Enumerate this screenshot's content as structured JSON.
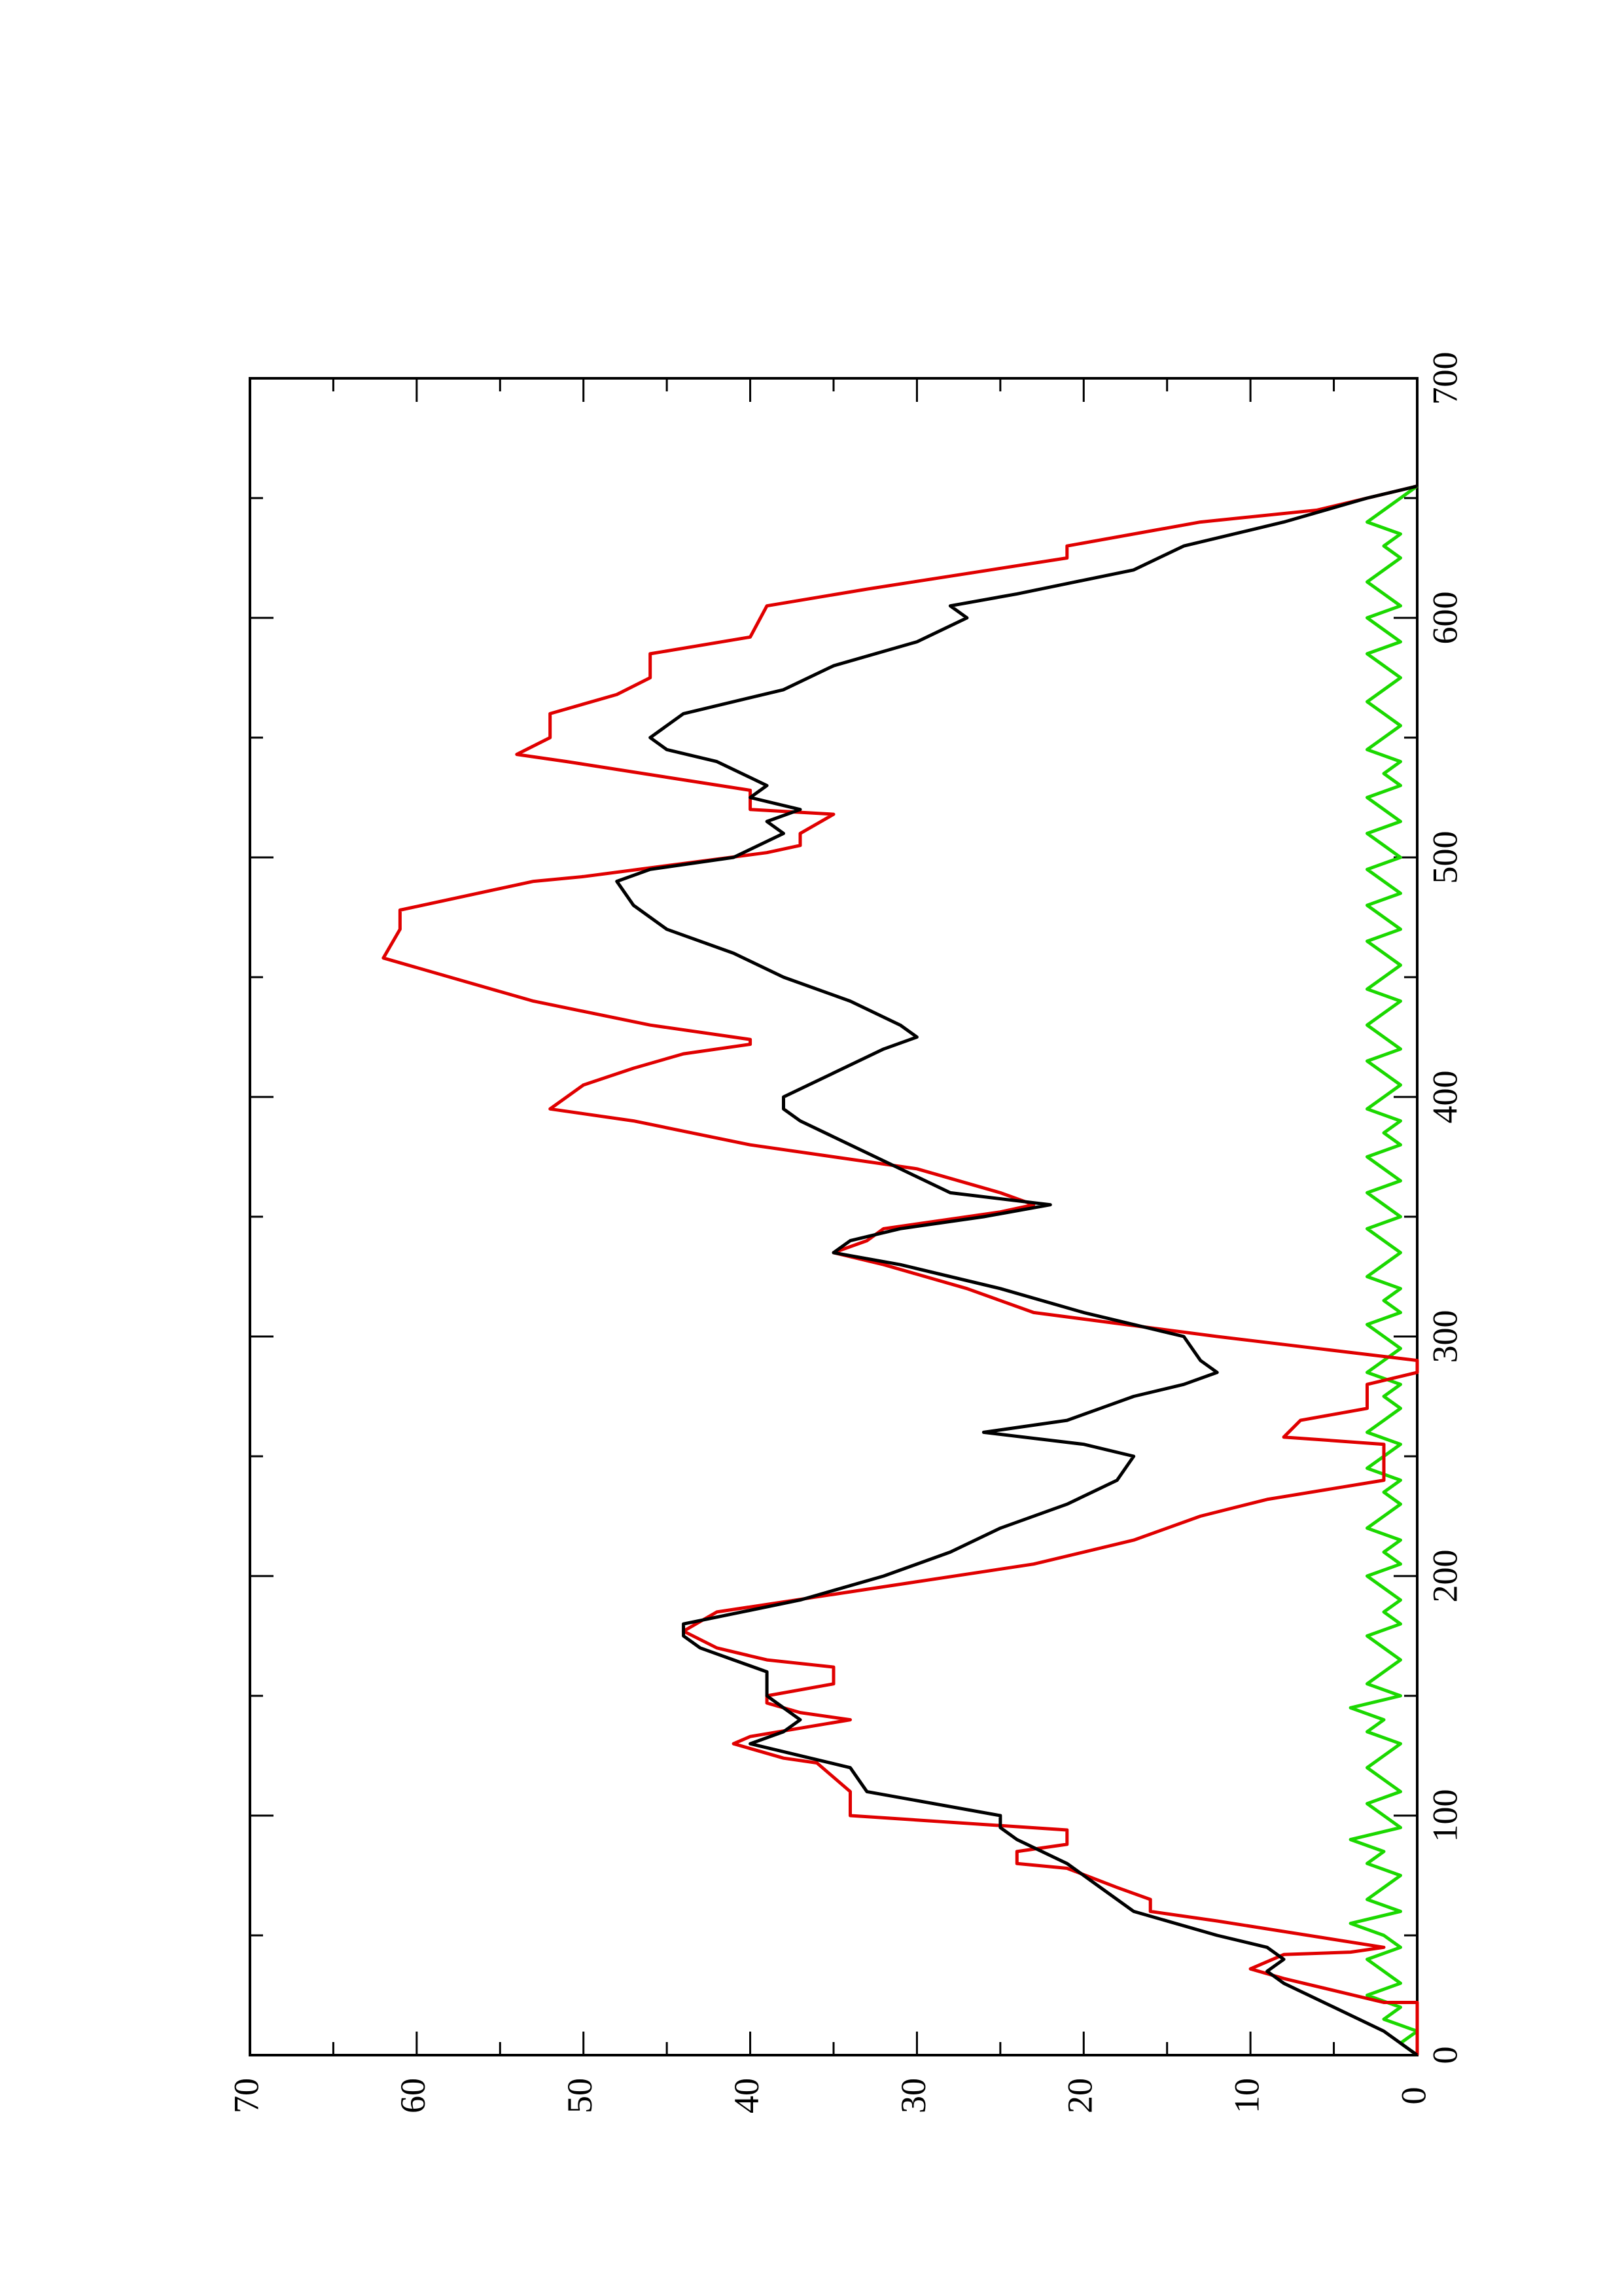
{
  "chart_data": {
    "type": "line",
    "orientation": "rotated-90-ccw",
    "x_axis": {
      "range": [
        0,
        700
      ],
      "ticks": [
        0,
        100,
        200,
        300,
        400,
        500,
        600,
        700
      ]
    },
    "y_axis": {
      "range": [
        0,
        70
      ],
      "ticks": [
        0,
        10,
        20,
        30,
        40,
        50,
        60,
        70
      ]
    },
    "grid": false,
    "legend": "none",
    "series": [
      {
        "color": "#000000",
        "style": "line",
        "x": [
          0,
          10,
          20,
          30,
          35,
          40,
          45,
          50,
          60,
          70,
          80,
          90,
          95,
          100,
          110,
          120,
          130,
          135,
          140,
          145,
          150,
          160,
          165,
          170,
          175,
          180,
          190,
          200,
          210,
          220,
          230,
          240,
          250,
          255,
          260,
          265,
          270,
          275,
          280,
          285,
          290,
          300,
          310,
          320,
          330,
          335,
          340,
          345,
          350,
          355,
          360,
          370,
          380,
          390,
          395,
          400,
          410,
          420,
          425,
          430,
          440,
          450,
          460,
          470,
          480,
          490,
          495,
          500,
          510,
          515,
          520,
          525,
          530,
          540,
          545,
          550,
          560,
          570,
          580,
          590,
          600,
          605,
          610,
          620,
          630,
          640,
          650,
          655
        ],
        "y": [
          0,
          2,
          5,
          8,
          9,
          8,
          9,
          12,
          17,
          19,
          21,
          24,
          25,
          25,
          33,
          34,
          40,
          38,
          37,
          38,
          39,
          39,
          41,
          43,
          44,
          44,
          37,
          32,
          28,
          25,
          21,
          18,
          17,
          20,
          26,
          21,
          19,
          17,
          14,
          12,
          13,
          14,
          20,
          25,
          31,
          35,
          34,
          31,
          26,
          22,
          28,
          31,
          34,
          37,
          38,
          38,
          35,
          32,
          30,
          31,
          34,
          38,
          41,
          45,
          47,
          48,
          46,
          41,
          38,
          39,
          37,
          40,
          39,
          42,
          45,
          46,
          44,
          38,
          35,
          30,
          27,
          28,
          24,
          17,
          14,
          8,
          3,
          0
        ]
      },
      {
        "color": "#e00000",
        "style": "line",
        "x": [
          0,
          22,
          22,
          32,
          36,
          42,
          43,
          45,
          56,
          60,
          65,
          70,
          78,
          80,
          85,
          88,
          94,
          100,
          110,
          122,
          124,
          130,
          133,
          140,
          143,
          147,
          150,
          155,
          162,
          165,
          170,
          177,
          181,
          185,
          205,
          215,
          225,
          232,
          240,
          255,
          258,
          265,
          270,
          280,
          285,
          290,
          295,
          300,
          310,
          320,
          330,
          335,
          340,
          345,
          352,
          355,
          360,
          370,
          380,
          390,
          395,
          405,
          412,
          418,
          422,
          424,
          430,
          440,
          450,
          458,
          470,
          478,
          490,
          492,
          502,
          505,
          510,
          518,
          520,
          528,
          540,
          543,
          550,
          560,
          568,
          575,
          585,
          592,
          605,
          612,
          625,
          630,
          640,
          645,
          655
        ],
        "y": [
          0,
          0,
          2,
          8,
          10,
          8,
          4,
          2,
          12,
          16,
          16,
          18,
          21,
          24,
          24,
          21,
          21,
          34,
          34,
          36,
          38,
          41,
          40,
          34,
          37,
          39,
          39,
          35,
          35,
          39,
          42,
          44,
          43,
          42,
          23,
          17,
          13,
          9,
          2,
          2,
          8,
          7,
          3,
          3,
          0,
          0,
          6,
          12,
          23,
          27,
          32,
          35,
          33,
          32,
          25,
          23,
          25,
          30,
          40,
          47,
          52,
          50,
          47,
          44,
          40,
          40,
          46,
          53,
          58,
          62,
          61,
          61,
          53,
          50,
          39,
          37,
          37,
          35,
          40,
          40,
          51,
          54,
          52,
          52,
          48,
          46,
          46,
          40,
          39,
          33,
          21,
          21,
          13,
          6,
          0
        ]
      },
      {
        "color": "#1bd800",
        "style": "line",
        "x": [
          0,
          5,
          10,
          15,
          20,
          25,
          30,
          35,
          40,
          45,
          50,
          55,
          60,
          65,
          70,
          75,
          80,
          85,
          90,
          95,
          100,
          105,
          110,
          115,
          120,
          125,
          130,
          135,
          140,
          145,
          150,
          155,
          160,
          165,
          170,
          175,
          180,
          185,
          190,
          195,
          200,
          205,
          210,
          215,
          220,
          225,
          230,
          235,
          240,
          245,
          250,
          255,
          260,
          265,
          270,
          275,
          280,
          285,
          290,
          295,
          300,
          305,
          310,
          315,
          320,
          325,
          330,
          335,
          340,
          345,
          350,
          355,
          360,
          365,
          370,
          375,
          380,
          385,
          390,
          395,
          400,
          405,
          410,
          415,
          420,
          425,
          430,
          435,
          440,
          445,
          450,
          455,
          460,
          465,
          470,
          475,
          480,
          485,
          490,
          495,
          500,
          505,
          510,
          515,
          520,
          525,
          530,
          535,
          540,
          545,
          550,
          555,
          560,
          565,
          570,
          575,
          580,
          585,
          590,
          595,
          600,
          605,
          610,
          615,
          620,
          625,
          630,
          635,
          640,
          645,
          650,
          655
        ],
        "y": [
          0,
          1,
          0,
          2,
          1,
          3,
          1,
          2,
          3,
          1,
          2,
          4,
          1,
          3,
          2,
          1,
          3,
          2,
          4,
          1,
          2,
          3,
          1,
          2,
          3,
          2,
          1,
          3,
          2,
          4,
          1,
          3,
          2,
          1,
          2,
          3,
          1,
          2,
          1,
          2,
          3,
          1,
          2,
          1,
          3,
          2,
          1,
          2,
          1,
          3,
          2,
          1,
          3,
          2,
          1,
          2,
          1,
          3,
          2,
          1,
          2,
          3,
          1,
          2,
          1,
          3,
          2,
          1,
          2,
          3,
          1,
          2,
          3,
          1,
          2,
          3,
          1,
          2,
          1,
          3,
          2,
          1,
          2,
          3,
          1,
          2,
          3,
          2,
          1,
          3,
          2,
          1,
          2,
          3,
          1,
          2,
          3,
          1,
          2,
          3,
          1,
          2,
          3,
          1,
          2,
          3,
          1,
          2,
          1,
          3,
          2,
          1,
          2,
          3,
          2,
          1,
          2,
          3,
          1,
          2,
          3,
          1,
          2,
          3,
          2,
          1,
          2,
          1,
          3,
          2,
          1,
          0
        ]
      }
    ]
  }
}
